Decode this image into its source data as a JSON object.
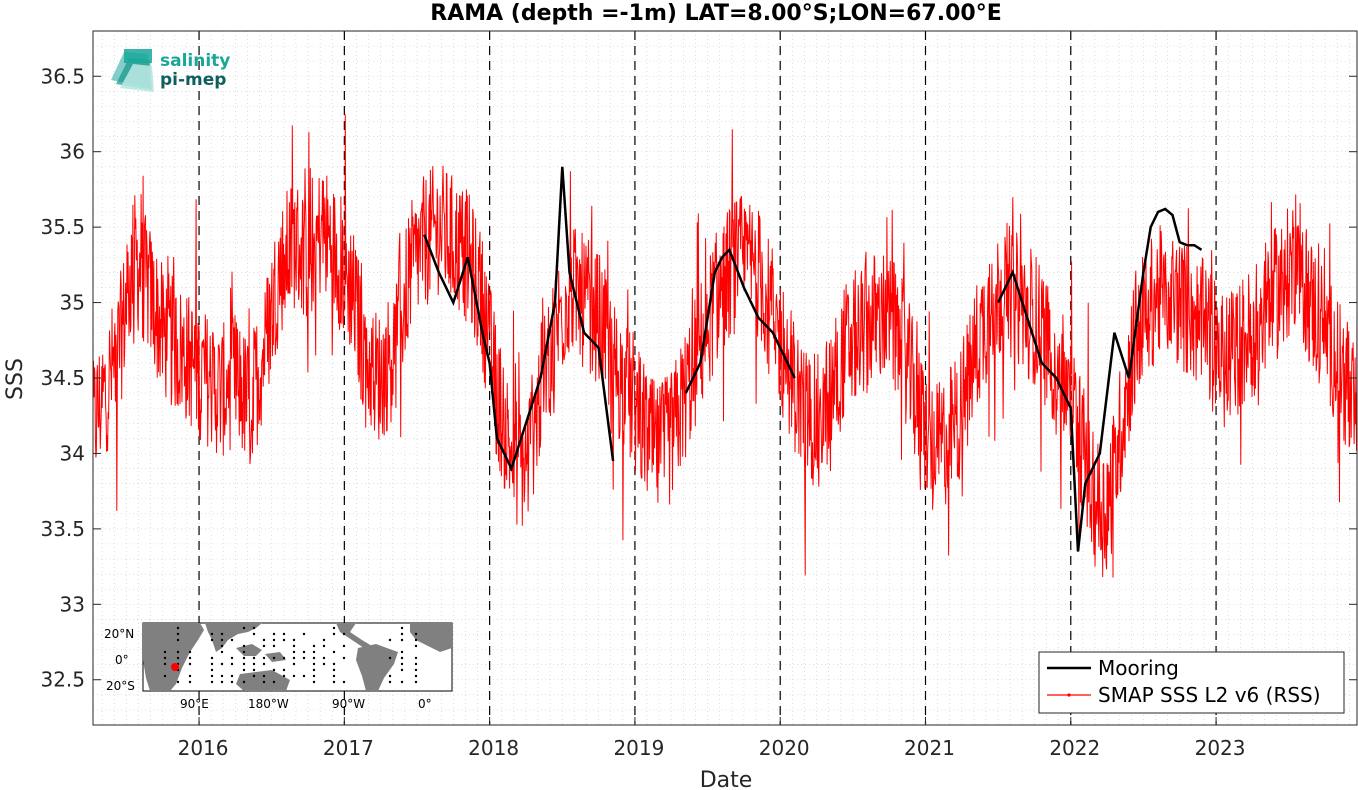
{
  "chart_data": {
    "type": "line",
    "title": "RAMA (depth =-1m) LAT=8.00°S;LON=67.00°E",
    "xlabel": "Date",
    "ylabel": "SSS",
    "xlim": [
      2015.27,
      2023.97
    ],
    "ylim": [
      32.2,
      36.8
    ],
    "x_ticks": [
      2016,
      2017,
      2018,
      2019,
      2020,
      2021,
      2022,
      2023
    ],
    "x_tick_labels": [
      "2016",
      "2017",
      "2018",
      "2019",
      "2020",
      "2021",
      "2022",
      "2023"
    ],
    "y_ticks": [
      32.5,
      33,
      33.5,
      34,
      34.5,
      35,
      35.5,
      36,
      36.5
    ],
    "y_tick_labels": [
      "32.5",
      "33",
      "33.5",
      "34",
      "34.5",
      "35",
      "35.5",
      "36",
      "36.5"
    ],
    "grid": true,
    "year_boundaries": [
      2016,
      2017,
      2018,
      2019,
      2020,
      2021,
      2022,
      2023
    ],
    "legend_position": "bottom-right",
    "series": [
      {
        "name": "Mooring",
        "color": "#000000",
        "x": [
          2017.55,
          2017.65,
          2017.75,
          2017.85,
          2017.95,
          2018.0,
          2018.05,
          2018.15,
          2018.25,
          2018.35,
          2018.45,
          2018.5,
          2018.55,
          2018.65,
          2018.75,
          2018.85,
          2019.35,
          2019.45,
          2019.5,
          2019.55,
          2019.6,
          2019.65,
          2019.75,
          2019.85,
          2019.95,
          2020.05,
          2020.1,
          2021.5,
          2021.6,
          2021.7,
          2021.8,
          2021.9,
          2022.0,
          2022.05,
          2022.1,
          2022.2,
          2022.3,
          2022.4,
          2022.5,
          2022.55,
          2022.6,
          2022.65,
          2022.7,
          2022.75,
          2022.8,
          2022.85,
          2022.9
        ],
        "y": [
          35.45,
          35.2,
          35.0,
          35.3,
          34.8,
          34.6,
          34.1,
          33.9,
          34.2,
          34.5,
          35.0,
          35.9,
          35.2,
          34.8,
          34.7,
          33.95,
          34.4,
          34.6,
          34.9,
          35.2,
          35.3,
          35.35,
          35.1,
          34.9,
          34.8,
          34.6,
          34.5,
          35.0,
          35.2,
          34.9,
          34.6,
          34.5,
          34.3,
          33.35,
          33.8,
          34.0,
          34.8,
          34.5,
          35.2,
          35.5,
          35.6,
          35.62,
          35.58,
          35.4,
          35.38,
          35.38,
          35.35
        ]
      },
      {
        "name": "SMAP SSS L2 v6 (RSS)",
        "color": "#ff0000",
        "x": [
          2015.27,
          2015.35,
          2015.45,
          2015.55,
          2015.65,
          2015.75,
          2015.85,
          2015.95,
          2016.05,
          2016.15,
          2016.25,
          2016.35,
          2016.45,
          2016.55,
          2016.65,
          2016.75,
          2016.85,
          2016.95,
          2017.05,
          2017.15,
          2017.25,
          2017.35,
          2017.45,
          2017.55,
          2017.65,
          2017.75,
          2017.85,
          2017.95,
          2018.05,
          2018.15,
          2018.25,
          2018.35,
          2018.45,
          2018.55,
          2018.65,
          2018.75,
          2018.85,
          2018.95,
          2019.05,
          2019.15,
          2019.25,
          2019.35,
          2019.45,
          2019.55,
          2019.65,
          2019.75,
          2019.85,
          2019.95,
          2020.05,
          2020.15,
          2020.25,
          2020.35,
          2020.45,
          2020.55,
          2020.65,
          2020.75,
          2020.85,
          2020.95,
          2021.05,
          2021.15,
          2021.25,
          2021.35,
          2021.45,
          2021.55,
          2021.65,
          2021.75,
          2021.85,
          2021.95,
          2022.05,
          2022.15,
          2022.25,
          2022.35,
          2022.45,
          2022.55,
          2022.65,
          2022.75,
          2022.85,
          2022.95,
          2023.05,
          2023.15,
          2023.25,
          2023.35,
          2023.45,
          2023.55,
          2023.65,
          2023.75,
          2023.85,
          2023.97
        ],
        "y": [
          34.2,
          34.4,
          34.7,
          35.3,
          35.1,
          34.8,
          34.7,
          34.6,
          34.5,
          34.4,
          34.5,
          34.3,
          34.7,
          35.2,
          35.4,
          35.3,
          35.5,
          35.3,
          35.1,
          34.6,
          34.5,
          34.7,
          35.2,
          35.4,
          35.5,
          35.4,
          35.3,
          35.0,
          34.4,
          34.0,
          33.9,
          34.4,
          34.8,
          35.1,
          35.0,
          34.9,
          34.6,
          34.4,
          34.2,
          34.0,
          34.1,
          34.4,
          34.7,
          35.0,
          35.2,
          35.3,
          35.2,
          34.9,
          34.6,
          34.3,
          34.2,
          34.4,
          34.7,
          34.8,
          34.9,
          34.9,
          34.7,
          34.3,
          34.0,
          34.1,
          34.3,
          34.7,
          35.0,
          35.1,
          35.0,
          34.9,
          34.7,
          34.5,
          34.2,
          33.7,
          33.6,
          34.2,
          34.8,
          35.0,
          35.1,
          35.0,
          34.9,
          34.8,
          34.6,
          34.7,
          34.8,
          35.0,
          35.1,
          35.3,
          35.0,
          34.8,
          34.6,
          34.2
        ]
      }
    ],
    "legend": {
      "entries": [
        "Mooring",
        "SMAP SSS L2 v6 (RSS)"
      ]
    },
    "inset_map": {
      "lat_labels": [
        "20°N",
        "0°",
        "20°S"
      ],
      "lon_labels": [
        "90°E",
        "180°W",
        "90°W",
        "0°"
      ]
    },
    "logo": {
      "line1": "salinity",
      "line2": "pi-mep"
    }
  },
  "colors": {
    "mooring": "#000000",
    "satellite": "#ff0000",
    "grid": "#c8c8c8",
    "land": "#808080"
  }
}
